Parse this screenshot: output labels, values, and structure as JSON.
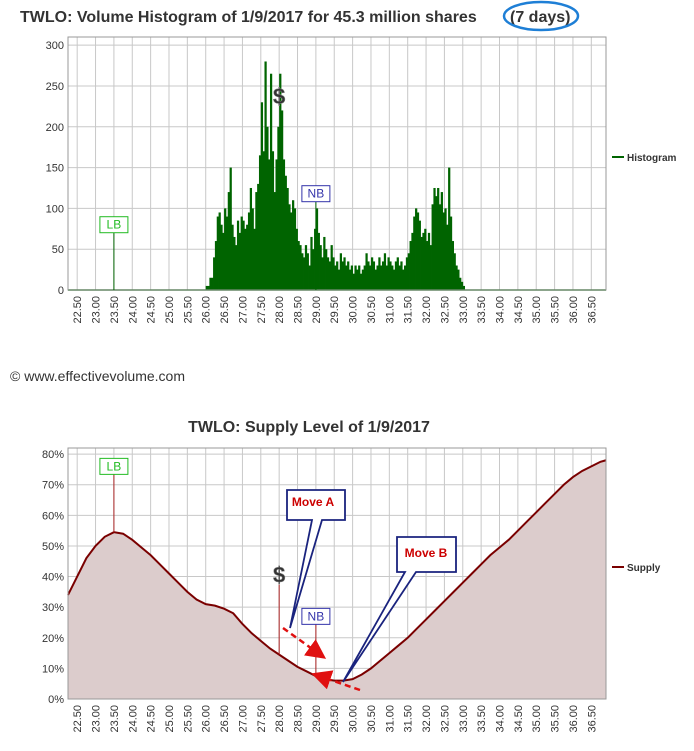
{
  "copyright": "© www.effectivevolume.com",
  "chart_data": [
    {
      "type": "bar",
      "title_main": "TWLO: Volume Histogram of 1/9/2017 for 45.3 million shares",
      "title_circled": "(7 days)",
      "x_ticks": [
        "22.50",
        "23.00",
        "23.50",
        "24.00",
        "24.50",
        "25.00",
        "25.50",
        "26.00",
        "26.50",
        "27.00",
        "27.50",
        "28.00",
        "28.50",
        "29.00",
        "29.50",
        "30.00",
        "30.50",
        "31.00",
        "31.50",
        "32.00",
        "32.50",
        "33.00",
        "33.50",
        "34.00",
        "34.50",
        "35.00",
        "35.50",
        "36.00",
        "36.50"
      ],
      "x_range": [
        22.25,
        36.9
      ],
      "y_ticks": [
        "0",
        "50",
        "100",
        "150",
        "200",
        "250",
        "300"
      ],
      "ylim": [
        0,
        310
      ],
      "legend": "Histogram",
      "legend_position": "right",
      "color": "#006400",
      "grid": true,
      "markers": [
        {
          "label": "LB",
          "x": 23.5,
          "y": 80,
          "color": "#22bb22"
        },
        {
          "label": "NB",
          "x": 29.0,
          "y": 118,
          "color": "#3333aa"
        },
        {
          "label": "$",
          "x": 28.0,
          "y": 228,
          "color": "#333333"
        }
      ],
      "series": [
        {
          "name": "Histogram",
          "points": [
            [
              25.95,
              0
            ],
            [
              26.0,
              5
            ],
            [
              26.1,
              15
            ],
            [
              26.2,
              40
            ],
            [
              26.25,
              60
            ],
            [
              26.3,
              90
            ],
            [
              26.35,
              95
            ],
            [
              26.4,
              80
            ],
            [
              26.45,
              70
            ],
            [
              26.5,
              100
            ],
            [
              26.55,
              90
            ],
            [
              26.6,
              120
            ],
            [
              26.65,
              150
            ],
            [
              26.7,
              80
            ],
            [
              26.75,
              65
            ],
            [
              26.8,
              55
            ],
            [
              26.85,
              85
            ],
            [
              26.9,
              70
            ],
            [
              26.95,
              90
            ],
            [
              27.0,
              85
            ],
            [
              27.05,
              75
            ],
            [
              27.1,
              80
            ],
            [
              27.15,
              95
            ],
            [
              27.2,
              125
            ],
            [
              27.25,
              100
            ],
            [
              27.3,
              75
            ],
            [
              27.35,
              120
            ],
            [
              27.4,
              130
            ],
            [
              27.45,
              165
            ],
            [
              27.5,
              230
            ],
            [
              27.55,
              170
            ],
            [
              27.6,
              280
            ],
            [
              27.65,
              200
            ],
            [
              27.7,
              160
            ],
            [
              27.75,
              265
            ],
            [
              27.8,
              170
            ],
            [
              27.85,
              120
            ],
            [
              27.9,
              160
            ],
            [
              27.95,
              200
            ],
            [
              28.0,
              265
            ],
            [
              28.05,
              220
            ],
            [
              28.1,
              160
            ],
            [
              28.15,
              140
            ],
            [
              28.2,
              125
            ],
            [
              28.25,
              105
            ],
            [
              28.3,
              95
            ],
            [
              28.35,
              110
            ],
            [
              28.4,
              100
            ],
            [
              28.45,
              75
            ],
            [
              28.5,
              60
            ],
            [
              28.55,
              55
            ],
            [
              28.6,
              45
            ],
            [
              28.65,
              40
            ],
            [
              28.7,
              55
            ],
            [
              28.75,
              45
            ],
            [
              28.8,
              30
            ],
            [
              28.85,
              65
            ],
            [
              28.9,
              50
            ],
            [
              28.95,
              75
            ],
            [
              29.0,
              100
            ],
            [
              29.05,
              70
            ],
            [
              29.1,
              55
            ],
            [
              29.15,
              40
            ],
            [
              29.2,
              65
            ],
            [
              29.25,
              50
            ],
            [
              29.3,
              40
            ],
            [
              29.35,
              35
            ],
            [
              29.4,
              55
            ],
            [
              29.45,
              40
            ],
            [
              29.5,
              30
            ],
            [
              29.55,
              35
            ],
            [
              29.6,
              25
            ],
            [
              29.65,
              45
            ],
            [
              29.7,
              35
            ],
            [
              29.75,
              40
            ],
            [
              29.8,
              30
            ],
            [
              29.85,
              35
            ],
            [
              29.9,
              25
            ],
            [
              29.95,
              30
            ],
            [
              30.0,
              20
            ],
            [
              30.05,
              30
            ],
            [
              30.1,
              25
            ],
            [
              30.15,
              30
            ],
            [
              30.2,
              20
            ],
            [
              30.25,
              25
            ],
            [
              30.3,
              30
            ],
            [
              30.35,
              45
            ],
            [
              30.4,
              35
            ],
            [
              30.45,
              30
            ],
            [
              30.5,
              40
            ],
            [
              30.55,
              35
            ],
            [
              30.6,
              25
            ],
            [
              30.65,
              30
            ],
            [
              30.7,
              40
            ],
            [
              30.75,
              30
            ],
            [
              30.8,
              35
            ],
            [
              30.85,
              45
            ],
            [
              30.9,
              30
            ],
            [
              30.95,
              40
            ],
            [
              31.0,
              35
            ],
            [
              31.05,
              30
            ],
            [
              31.1,
              25
            ],
            [
              31.15,
              35
            ],
            [
              31.2,
              40
            ],
            [
              31.25,
              30
            ],
            [
              31.3,
              35
            ],
            [
              31.35,
              25
            ],
            [
              31.4,
              30
            ],
            [
              31.45,
              40
            ],
            [
              31.5,
              45
            ],
            [
              31.55,
              60
            ],
            [
              31.6,
              70
            ],
            [
              31.65,
              90
            ],
            [
              31.7,
              100
            ],
            [
              31.75,
              95
            ],
            [
              31.8,
              85
            ],
            [
              31.85,
              65
            ],
            [
              31.9,
              70
            ],
            [
              31.95,
              75
            ],
            [
              32.0,
              60
            ],
            [
              32.05,
              70
            ],
            [
              32.1,
              55
            ],
            [
              32.15,
              105
            ],
            [
              32.2,
              125
            ],
            [
              32.25,
              115
            ],
            [
              32.3,
              125
            ],
            [
              32.35,
              105
            ],
            [
              32.4,
              120
            ],
            [
              32.45,
              95
            ],
            [
              32.5,
              100
            ],
            [
              32.55,
              80
            ],
            [
              32.6,
              150
            ],
            [
              32.65,
              90
            ],
            [
              32.7,
              60
            ],
            [
              32.75,
              45
            ],
            [
              32.8,
              30
            ],
            [
              32.85,
              25
            ],
            [
              32.9,
              15
            ],
            [
              32.95,
              10
            ],
            [
              33.0,
              5
            ],
            [
              33.05,
              0
            ]
          ]
        }
      ]
    },
    {
      "type": "area",
      "title": "TWLO: Supply Level of 1/9/2017",
      "x_ticks": [
        "22.50",
        "23.00",
        "23.50",
        "24.00",
        "24.50",
        "25.00",
        "25.50",
        "26.00",
        "26.50",
        "27.00",
        "27.50",
        "28.00",
        "28.50",
        "29.00",
        "29.50",
        "30.00",
        "30.50",
        "31.00",
        "31.50",
        "32.00",
        "32.50",
        "33.00",
        "33.50",
        "34.00",
        "34.50",
        "35.00",
        "35.50",
        "36.00",
        "36.50"
      ],
      "x_range": [
        22.25,
        36.9
      ],
      "y_ticks": [
        "0%",
        "10%",
        "20%",
        "30%",
        "40%",
        "50%",
        "60%",
        "70%",
        "80%"
      ],
      "ylim": [
        0,
        82
      ],
      "legend": "Supply",
      "legend_position": "right",
      "color": "#7a0000",
      "fill": "#dccccc",
      "grid": true,
      "markers": [
        {
          "label": "LB",
          "x": 23.5,
          "y": 76,
          "color": "#22bb22"
        },
        {
          "label": "NB",
          "x": 29.0,
          "y": 27,
          "color": "#3333aa"
        },
        {
          "label": "$",
          "x": 28.0,
          "y": 38,
          "color": "#333333"
        }
      ],
      "callouts": [
        {
          "label": "Move A",
          "color": "#cc0000"
        },
        {
          "label": "Move B",
          "color": "#cc0000"
        }
      ],
      "series": [
        {
          "name": "Supply",
          "points": [
            [
              22.25,
              34
            ],
            [
              22.5,
              40
            ],
            [
              22.75,
              46
            ],
            [
              23.0,
              50
            ],
            [
              23.25,
              53
            ],
            [
              23.5,
              54.5
            ],
            [
              23.75,
              54
            ],
            [
              24.0,
              52
            ],
            [
              24.25,
              49.5
            ],
            [
              24.5,
              47
            ],
            [
              24.75,
              44
            ],
            [
              25.0,
              41
            ],
            [
              25.25,
              38
            ],
            [
              25.5,
              35
            ],
            [
              25.75,
              32.5
            ],
            [
              26.0,
              31
            ],
            [
              26.25,
              30.5
            ],
            [
              26.5,
              29.5
            ],
            [
              26.75,
              28
            ],
            [
              27.0,
              24.5
            ],
            [
              27.25,
              21.5
            ],
            [
              27.5,
              19
            ],
            [
              27.75,
              16.5
            ],
            [
              28.0,
              14.5
            ],
            [
              28.25,
              12.5
            ],
            [
              28.5,
              10.5
            ],
            [
              28.75,
              9
            ],
            [
              29.0,
              7.5
            ],
            [
              29.25,
              6.5
            ],
            [
              29.5,
              6
            ],
            [
              29.75,
              6
            ],
            [
              30.0,
              6.5
            ],
            [
              30.25,
              8
            ],
            [
              30.5,
              10
            ],
            [
              30.75,
              12.5
            ],
            [
              31.0,
              15
            ],
            [
              31.25,
              17.5
            ],
            [
              31.5,
              20
            ],
            [
              31.75,
              23
            ],
            [
              32.0,
              26
            ],
            [
              32.25,
              29
            ],
            [
              32.5,
              32
            ],
            [
              32.75,
              35
            ],
            [
              33.0,
              38
            ],
            [
              33.25,
              41
            ],
            [
              33.5,
              44
            ],
            [
              33.75,
              47
            ],
            [
              34.0,
              49.5
            ],
            [
              34.25,
              52
            ],
            [
              34.5,
              55
            ],
            [
              34.75,
              58
            ],
            [
              35.0,
              61
            ],
            [
              35.25,
              64
            ],
            [
              35.5,
              67
            ],
            [
              35.75,
              70
            ],
            [
              36.0,
              72.5
            ],
            [
              36.25,
              74.5
            ],
            [
              36.5,
              76
            ],
            [
              36.75,
              77.5
            ],
            [
              36.9,
              78
            ]
          ]
        }
      ]
    }
  ]
}
